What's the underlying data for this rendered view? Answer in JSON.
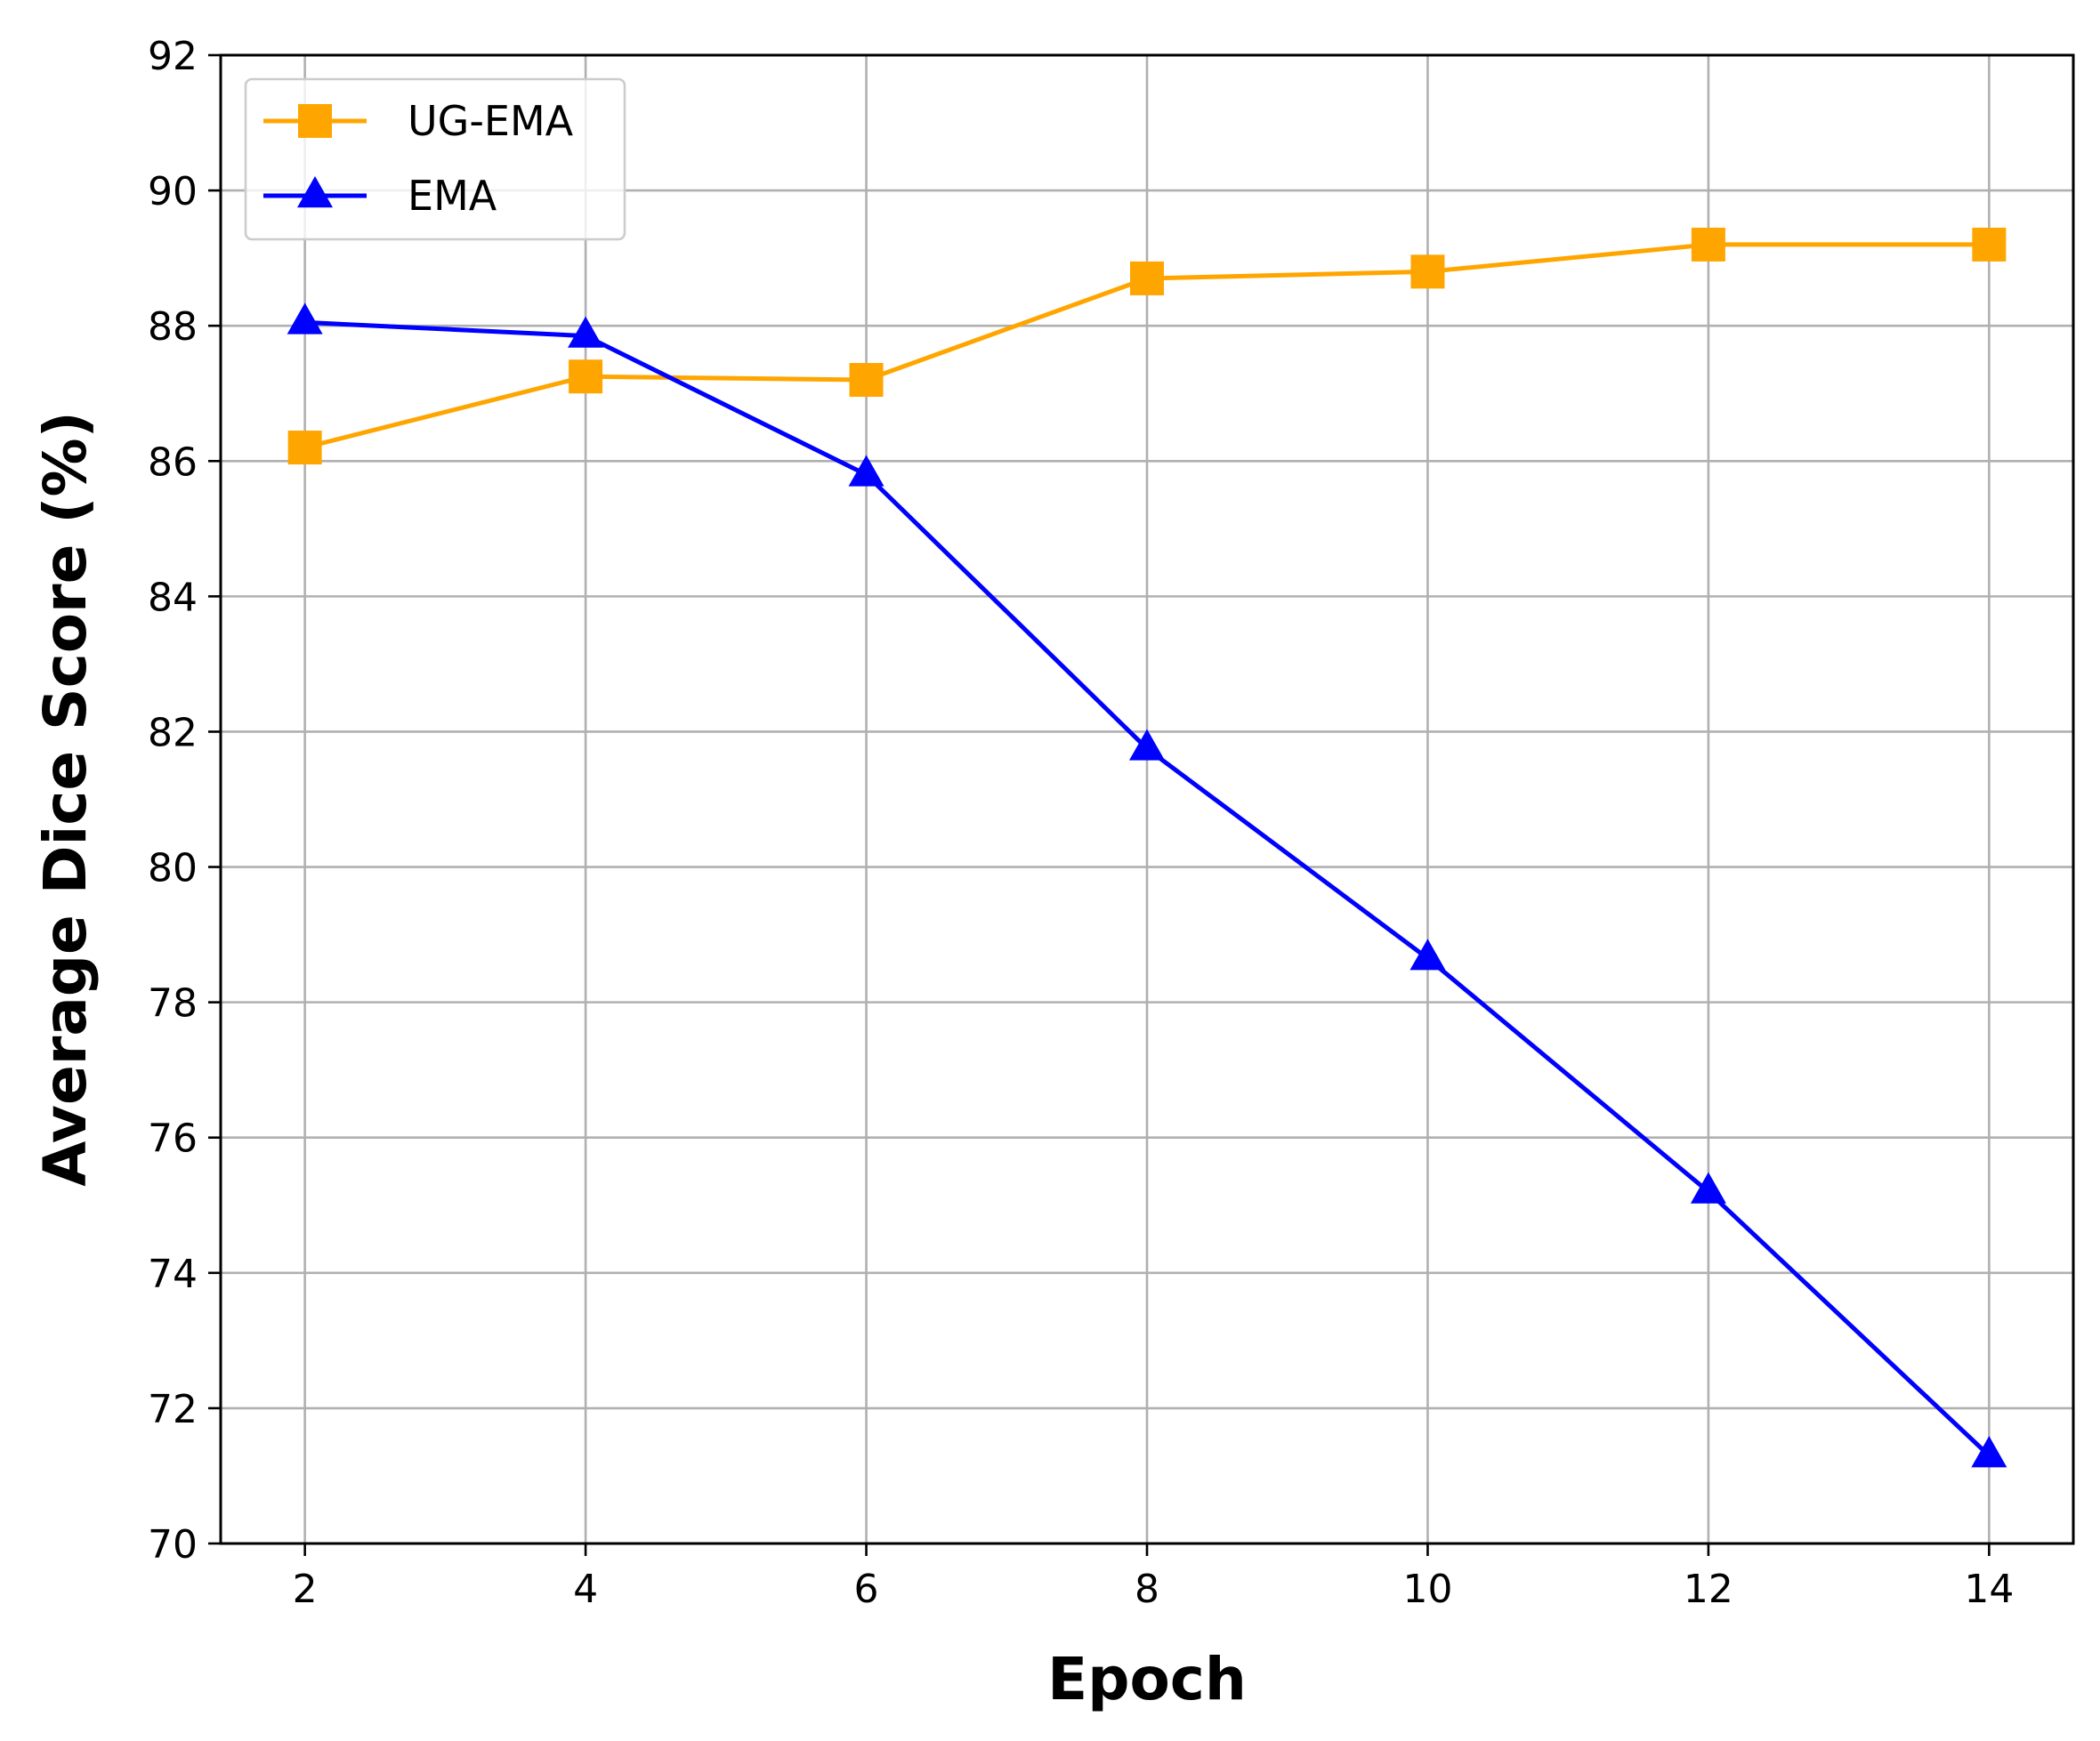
{
  "chart_data": {
    "type": "line",
    "xlabel": "Epoch",
    "ylabel": "Average Dice Score (%)",
    "xlim": [
      1.4,
      14.6
    ],
    "ylim": [
      70,
      92
    ],
    "xticks": [
      2,
      4,
      6,
      8,
      10,
      12,
      14
    ],
    "yticks": [
      70,
      72,
      74,
      76,
      78,
      80,
      82,
      84,
      86,
      88,
      90,
      92
    ],
    "grid": true,
    "legend_position": "top-left",
    "x": [
      2,
      4,
      6,
      8,
      10,
      12,
      14
    ],
    "series": [
      {
        "name": "UG-EMA",
        "values": [
          86.2,
          87.25,
          87.2,
          88.7,
          88.8,
          89.2,
          89.2
        ],
        "color": "#ffa500",
        "marker": "square"
      },
      {
        "name": "EMA",
        "values": [
          88.05,
          87.85,
          85.8,
          81.75,
          78.65,
          75.2,
          71.3
        ],
        "color": "#0000ff",
        "marker": "triangle"
      }
    ]
  }
}
